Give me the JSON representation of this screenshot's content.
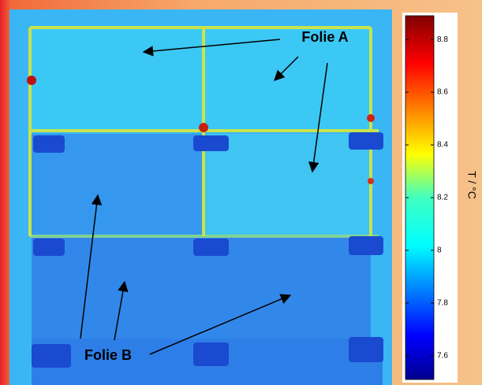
{
  "annotations": {
    "folie_a": "Folie A",
    "folie_b": "Folie B"
  },
  "colorbar": {
    "label": "T / °C",
    "lim": [
      7.51,
      8.89
    ],
    "ticks": [
      7.6,
      7.8,
      8,
      8.2,
      8.4,
      8.6,
      8.8
    ]
  }
}
